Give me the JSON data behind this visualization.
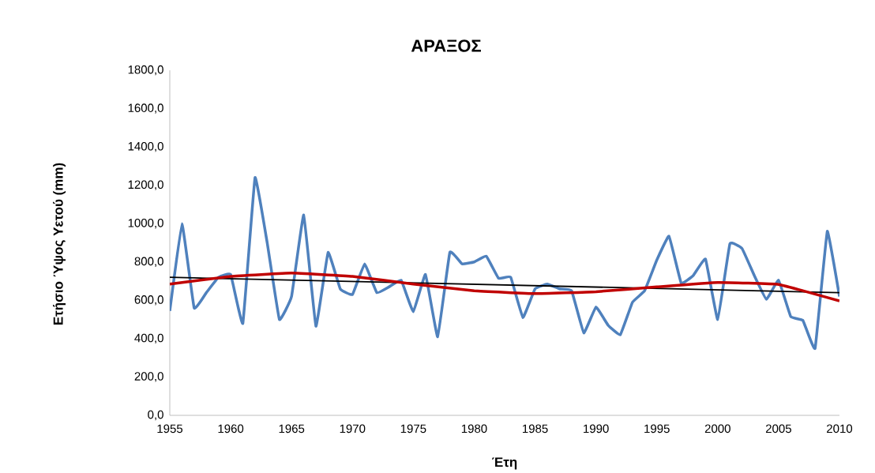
{
  "chart_data": {
    "type": "line",
    "title": "ΑΡΑΞΟΣ",
    "xlabel": "Έτη",
    "ylabel": "Ετήσιο Ύψος Υετού (mm)",
    "x": [
      1955,
      1956,
      1957,
      1958,
      1959,
      1960,
      1961,
      1962,
      1963,
      1964,
      1965,
      1966,
      1967,
      1968,
      1969,
      1970,
      1971,
      1972,
      1973,
      1974,
      1975,
      1976,
      1977,
      1978,
      1979,
      1980,
      1981,
      1982,
      1983,
      1984,
      1985,
      1986,
      1987,
      1988,
      1989,
      1990,
      1991,
      1992,
      1993,
      1994,
      1995,
      1996,
      1997,
      1998,
      1999,
      2000,
      2001,
      2002,
      2003,
      2004,
      2005,
      2006,
      2007,
      2008,
      2009,
      2010
    ],
    "series": [
      {
        "color": "#4f81bd",
        "values": [
          545,
          1000,
          560,
          640,
          720,
          735,
          480,
          1240,
          900,
          500,
          620,
          1045,
          465,
          850,
          660,
          630,
          790,
          640,
          670,
          705,
          540,
          735,
          410,
          850,
          790,
          800,
          830,
          715,
          720,
          510,
          660,
          685,
          660,
          650,
          430,
          565,
          470,
          420,
          590,
          650,
          810,
          935,
          690,
          730,
          815,
          500,
          895,
          870,
          730,
          605,
          705,
          515,
          495,
          350,
          960,
          620
        ]
      },
      {
        "color": "#000000",
        "x": [
          1955,
          2010
        ],
        "values": [
          720,
          640
        ]
      },
      {
        "color": "#c00000",
        "x": [
          1955,
          1960,
          1965,
          1970,
          1975,
          1980,
          1985,
          1990,
          1995,
          2000,
          2005,
          2010
        ],
        "values": [
          685,
          725,
          742,
          725,
          685,
          650,
          635,
          645,
          670,
          693,
          683,
          597
        ]
      }
    ],
    "xlim": [
      1955,
      2010
    ],
    "xticks": [
      1955,
      1960,
      1965,
      1970,
      1975,
      1980,
      1985,
      1990,
      1995,
      2000,
      2005,
      2010
    ],
    "ylim": [
      0,
      1800
    ],
    "yticks": [
      {
        "value": 0,
        "label": "0,0"
      },
      {
        "value": 200,
        "label": "200,0"
      },
      {
        "value": 400,
        "label": "400,0"
      },
      {
        "value": 600,
        "label": "600,0"
      },
      {
        "value": 800,
        "label": "800,0"
      },
      {
        "value": 1000,
        "label": "1000,0"
      },
      {
        "value": 1200,
        "label": "1200,0"
      },
      {
        "value": 1400,
        "label": "1400,0"
      },
      {
        "value": 1600,
        "label": "1600,0"
      },
      {
        "value": 1800,
        "label": "1800,0"
      }
    ],
    "grid": false,
    "legend": false,
    "marker": "none",
    "line_style": "solid"
  }
}
